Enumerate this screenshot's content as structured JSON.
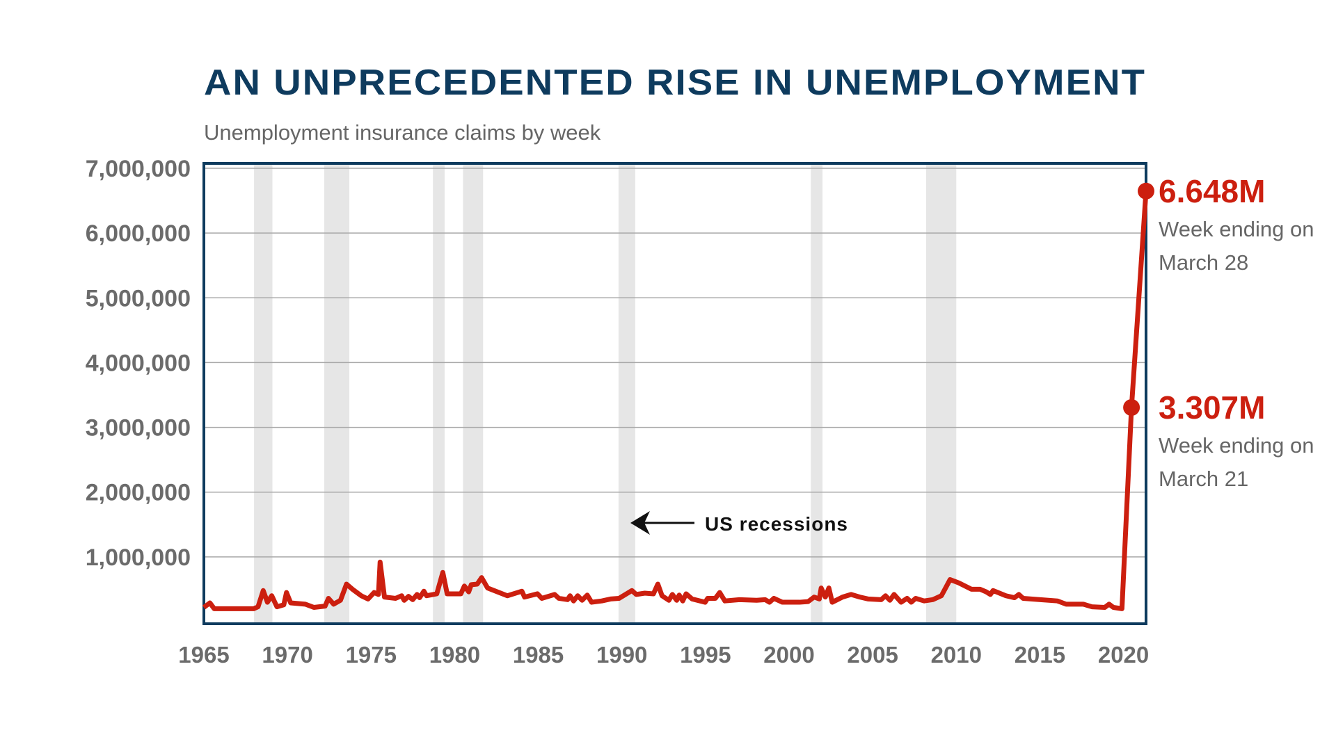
{
  "chart_data": {
    "type": "line",
    "title": "AN UNPRECEDENTED RISE IN UNEMPLOYMENT",
    "subtitle": "Unemployment insurance claims by week",
    "x": [
      1965.0,
      1965.36,
      1965.62,
      1967.98,
      1968.24,
      1968.55,
      1968.8,
      1969.06,
      1969.37,
      1969.78,
      1969.94,
      1970.19,
      1971.07,
      1971.58,
      1972.25,
      1972.45,
      1972.76,
      1973.17,
      1973.53,
      1973.89,
      1974.41,
      1974.82,
      1975.18,
      1975.44,
      1975.54,
      1975.8,
      1976.47,
      1976.83,
      1976.98,
      1977.24,
      1977.49,
      1977.75,
      1977.9,
      1978.16,
      1978.32,
      1978.93,
      1979.29,
      1979.55,
      1980.37,
      1980.58,
      1980.84,
      1980.99,
      1981.35,
      1981.61,
      1981.97,
      1983.15,
      1984.02,
      1984.18,
      1984.95,
      1985.21,
      1985.98,
      1986.23,
      1986.75,
      1986.9,
      1987.11,
      1987.36,
      1987.62,
      1987.93,
      1988.19,
      1988.8,
      1989.32,
      1989.83,
      1990.6,
      1990.86,
      1991.37,
      1991.89,
      1992.15,
      1992.4,
      1992.81,
      1993.02,
      1993.28,
      1993.43,
      1993.64,
      1993.84,
      1994.2,
      1994.98,
      1995.13,
      1995.59,
      1995.85,
      1996.16,
      1997.03,
      1998.06,
      1998.57,
      1998.83,
      1999.09,
      1999.6,
      2000.63,
      2001.14,
      2001.5,
      2001.81,
      2001.92,
      2002.17,
      2002.38,
      2002.58,
      2003.2,
      2003.71,
      2004.23,
      2004.74,
      2005.51,
      2005.77,
      2006.03,
      2006.28,
      2006.7,
      2007.06,
      2007.31,
      2007.57,
      2008.08,
      2008.6,
      2009.11,
      2009.63,
      2010.14,
      2010.91,
      2011.43,
      2011.79,
      2012.04,
      2012.2,
      2012.97,
      2013.48,
      2013.74,
      2014.0,
      2015.03,
      2016.05,
      2016.57,
      2017.6,
      2018.11,
      2018.88,
      2019.14,
      2019.4,
      2019.91,
      2020.48,
      2021.35
    ],
    "series": [
      {
        "color": "#cc1f0f",
        "values": [
          220000,
          290000,
          200000,
          200000,
          230000,
          480000,
          300000,
          400000,
          230000,
          260000,
          450000,
          290000,
          270000,
          220000,
          240000,
          360000,
          270000,
          330000,
          580000,
          500000,
          400000,
          350000,
          450000,
          420000,
          920000,
          380000,
          360000,
          400000,
          330000,
          390000,
          340000,
          420000,
          370000,
          470000,
          400000,
          430000,
          760000,
          430000,
          430000,
          550000,
          460000,
          570000,
          580000,
          680000,
          520000,
          400000,
          470000,
          380000,
          430000,
          360000,
          420000,
          360000,
          340000,
          400000,
          320000,
          400000,
          330000,
          410000,
          300000,
          320000,
          350000,
          360000,
          480000,
          420000,
          440000,
          430000,
          580000,
          400000,
          330000,
          420000,
          330000,
          410000,
          320000,
          430000,
          350000,
          300000,
          360000,
          360000,
          450000,
          320000,
          340000,
          330000,
          340000,
          300000,
          360000,
          300000,
          300000,
          310000,
          380000,
          350000,
          520000,
          380000,
          520000,
          300000,
          380000,
          420000,
          380000,
          350000,
          340000,
          400000,
          330000,
          420000,
          300000,
          360000,
          300000,
          360000,
          320000,
          340000,
          400000,
          650000,
          600000,
          500000,
          500000,
          460000,
          420000,
          480000,
          400000,
          370000,
          420000,
          360000,
          340000,
          320000,
          270000,
          270000,
          230000,
          220000,
          270000,
          220000,
          200000,
          3307000,
          6648000
        ]
      }
    ],
    "xlim": [
      1965,
      2021.35
    ],
    "ylim": [
      0,
      7000000
    ],
    "xticks": [
      1965,
      1970,
      1975,
      1980,
      1985,
      1990,
      1995,
      2000,
      2005,
      2010,
      2015,
      2020
    ],
    "yticks": [
      {
        "value": 1000000,
        "label": "1,000,000"
      },
      {
        "value": 2000000,
        "label": "2,000,000"
      },
      {
        "value": 3000000,
        "label": "3,000,000"
      },
      {
        "value": 4000000,
        "label": "4,000,000"
      },
      {
        "value": 5000000,
        "label": "5,000,000"
      },
      {
        "value": 6000000,
        "label": "6,000,000"
      },
      {
        "value": 7000000,
        "label": "7,000,000"
      }
    ],
    "grid": true,
    "recessions": {
      "label": "US recessions",
      "color": "#e6e6e6",
      "periods": [
        [
          1968.0,
          1969.1
        ],
        [
          1972.2,
          1973.7
        ],
        [
          1978.7,
          1979.4
        ],
        [
          1980.5,
          1981.7
        ],
        [
          1989.8,
          1990.8
        ],
        [
          2001.3,
          2002.0
        ],
        [
          2008.2,
          2010.0
        ]
      ]
    },
    "highlights": [
      {
        "x": 2021.35,
        "value": 6648000,
        "label": "6.648M",
        "note": [
          "Week ending on",
          "March 28"
        ]
      },
      {
        "x": 2020.48,
        "value": 3307000,
        "label": "3.307M",
        "note": [
          "Week ending on",
          "March 21"
        ]
      }
    ]
  }
}
